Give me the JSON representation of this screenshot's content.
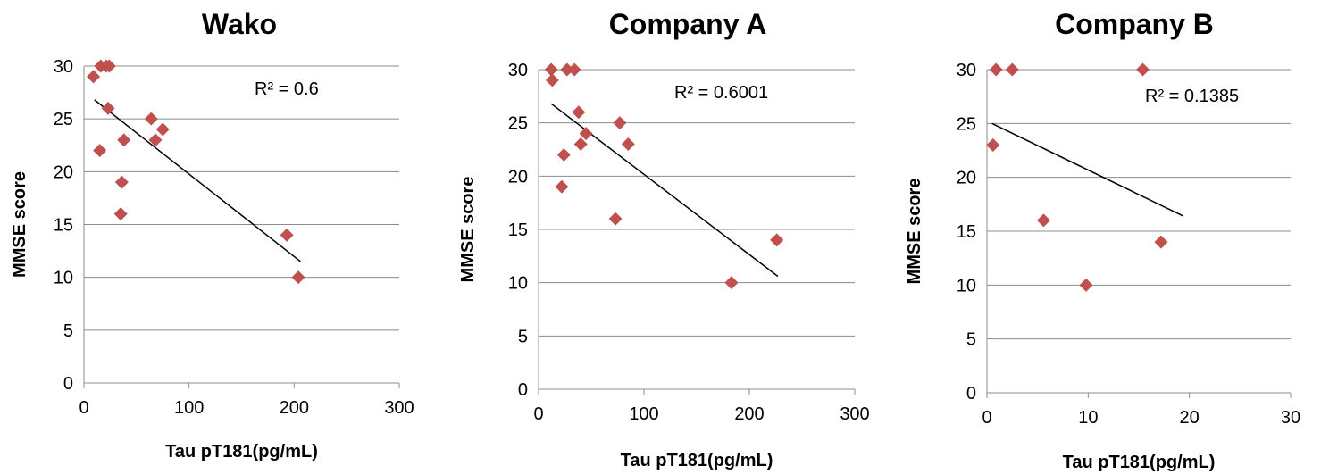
{
  "chart_data": [
    {
      "type": "scatter",
      "title": "Wako",
      "xlabel": "Tau pT181(pg/mL)",
      "ylabel": "MMSE score",
      "xlim": [
        0,
        300
      ],
      "ylim": [
        0,
        30
      ],
      "xticks": [
        "0",
        "100",
        "200",
        "300"
      ],
      "yticks": [
        "0",
        "5",
        "10",
        "15",
        "20",
        "25",
        "30"
      ],
      "grid": "horizontal",
      "marker_color": "#C0504D",
      "points": [
        {
          "x": 9,
          "y": 29
        },
        {
          "x": 16,
          "y": 30
        },
        {
          "x": 21,
          "y": 30
        },
        {
          "x": 24,
          "y": 30
        },
        {
          "x": 23,
          "y": 26
        },
        {
          "x": 15,
          "y": 22
        },
        {
          "x": 38,
          "y": 23
        },
        {
          "x": 36,
          "y": 19
        },
        {
          "x": 35,
          "y": 16
        },
        {
          "x": 64,
          "y": 25
        },
        {
          "x": 75,
          "y": 24
        },
        {
          "x": 68,
          "y": 23
        },
        {
          "x": 193,
          "y": 14
        },
        {
          "x": 204,
          "y": 10
        }
      ],
      "trendline": {
        "x": [
          10,
          206
        ],
        "y": [
          26.8,
          11.5
        ]
      },
      "annotation": "R² = 0.6"
    },
    {
      "type": "scatter",
      "title": "Company A",
      "xlabel": "Tau pT181(pg/mL)",
      "ylabel": "MMSE score",
      "xlim": [
        0,
        300
      ],
      "ylim": [
        0,
        30
      ],
      "xticks": [
        "0",
        "100",
        "200",
        "300"
      ],
      "yticks": [
        "0",
        "5",
        "10",
        "15",
        "20",
        "25",
        "30"
      ],
      "grid": "horizontal",
      "marker_color": "#C0504D",
      "points": [
        {
          "x": 12,
          "y": 30
        },
        {
          "x": 13,
          "y": 29
        },
        {
          "x": 27,
          "y": 30
        },
        {
          "x": 34,
          "y": 30
        },
        {
          "x": 38,
          "y": 26
        },
        {
          "x": 45,
          "y": 24
        },
        {
          "x": 40,
          "y": 23
        },
        {
          "x": 24,
          "y": 22
        },
        {
          "x": 22,
          "y": 19
        },
        {
          "x": 77,
          "y": 25
        },
        {
          "x": 85,
          "y": 23
        },
        {
          "x": 73,
          "y": 16
        },
        {
          "x": 183,
          "y": 10
        },
        {
          "x": 226,
          "y": 14
        }
      ],
      "trendline": {
        "x": [
          12,
          227
        ],
        "y": [
          26.8,
          10.6
        ]
      },
      "annotation": "R² = 0.6001"
    },
    {
      "type": "scatter",
      "title": "Company B",
      "xlabel": "Tau pT181(pg/mL)",
      "ylabel": "MMSE score",
      "xlim": [
        0,
        30
      ],
      "ylim": [
        0,
        30
      ],
      "xticks": [
        "0",
        "10",
        "20",
        "30"
      ],
      "yticks": [
        "0",
        "5",
        "10",
        "15",
        "20",
        "25",
        "30"
      ],
      "grid": "horizontal",
      "marker_color": "#C0504D",
      "points": [
        {
          "x": 0.9,
          "y": 30
        },
        {
          "x": 2.5,
          "y": 30
        },
        {
          "x": 15.4,
          "y": 30
        },
        {
          "x": 0.6,
          "y": 23
        },
        {
          "x": 5.6,
          "y": 16
        },
        {
          "x": 17.2,
          "y": 14
        },
        {
          "x": 9.8,
          "y": 10
        }
      ],
      "trendline": {
        "x": [
          0.5,
          19.4
        ],
        "y": [
          25.0,
          16.4
        ]
      },
      "annotation": "R² = 0.1385"
    }
  ]
}
